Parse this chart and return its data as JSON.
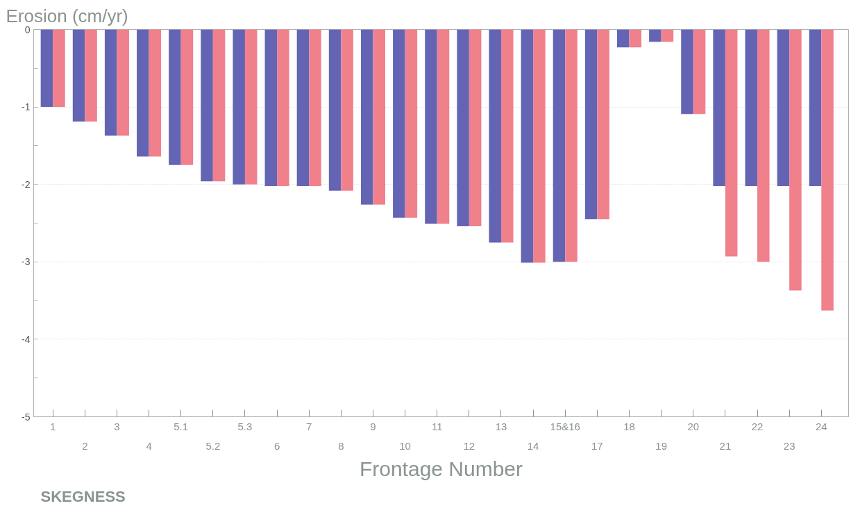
{
  "chart_data": {
    "type": "bar",
    "ylabel": "Erosion (cm/yr)",
    "xlabel": "Frontage Number",
    "annotations": [
      "SKEGNESS"
    ],
    "categories": [
      "1",
      "2",
      "3",
      "4",
      "5.1",
      "5.2",
      "5.3",
      "6",
      "7",
      "8",
      "9",
      "10",
      "11",
      "12",
      "13",
      "14",
      "15&16",
      "17",
      "18",
      "19",
      "20",
      "21",
      "22",
      "23",
      "24"
    ],
    "series": [
      {
        "color": "#6464b4",
        "values": [
          -1.0,
          -1.19,
          -1.37,
          -1.64,
          -1.75,
          -1.96,
          -2.0,
          -2.02,
          -2.02,
          -2.08,
          -2.26,
          -2.43,
          -2.51,
          -2.54,
          -2.75,
          -3.01,
          -3.0,
          -2.45,
          -0.23,
          -0.16,
          -1.09,
          -2.02,
          -2.02,
          -2.02,
          -2.02
        ]
      },
      {
        "color": "#f0808c",
        "values": [
          -1.0,
          -1.19,
          -1.37,
          -1.64,
          -1.75,
          -1.96,
          -2.0,
          -2.02,
          -2.02,
          -2.08,
          -2.26,
          -2.43,
          -2.51,
          -2.54,
          -2.75,
          -3.01,
          -3.0,
          -2.45,
          -0.23,
          -0.16,
          -1.09,
          -2.93,
          -3.0,
          -3.37,
          -3.63
        ]
      }
    ],
    "ylim": [
      -5,
      0
    ],
    "yticks": [
      0,
      {
        "value": -0.5,
        "label": null
      },
      -1,
      {
        "value": -1.5,
        "label": null
      },
      -2,
      {
        "value": -2.5,
        "label": null
      },
      -3,
      {
        "value": -3.5,
        "label": null
      },
      -4,
      {
        "value": -4.5,
        "label": null
      },
      -5
    ],
    "grid": "y"
  }
}
